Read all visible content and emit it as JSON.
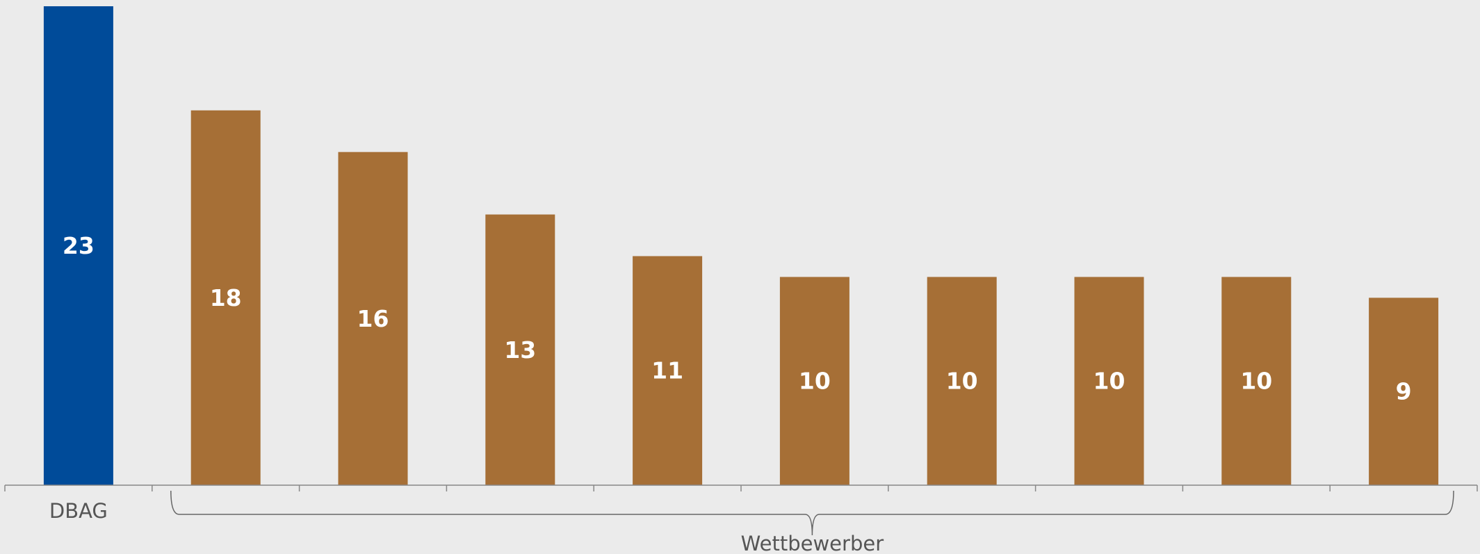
{
  "chart_data": {
    "type": "bar",
    "categories": [
      "DBAG",
      null,
      null,
      null,
      null,
      null,
      null,
      null,
      null,
      null
    ],
    "values": [
      23,
      18,
      16,
      13,
      11,
      10,
      10,
      10,
      10,
      9
    ],
    "colors": [
      "#004b99",
      "#a66f36",
      "#a66f36",
      "#a66f36",
      "#a66f36",
      "#a66f36",
      "#a66f36",
      "#a66f36",
      "#a66f36",
      "#a66f36"
    ],
    "ylim": [
      0,
      23
    ],
    "annotation": "Wettbewerber"
  }
}
